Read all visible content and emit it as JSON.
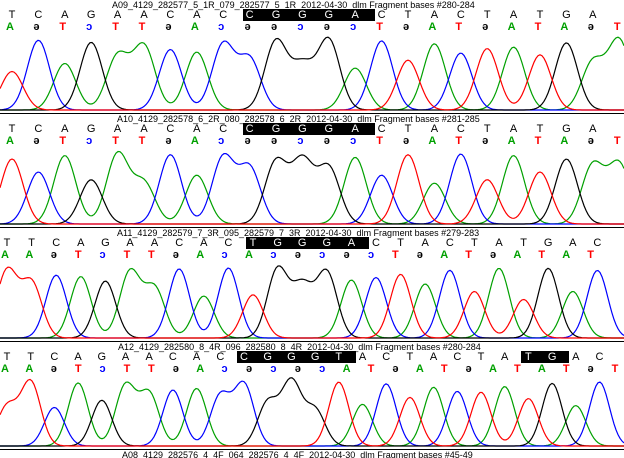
{
  "colors": {
    "A": "#00a000",
    "C": "#0000ff",
    "G": "#000000",
    "T": "#ff0000"
  },
  "panels": [
    {
      "title": "A09_4129_282577_5_1R_079_282577_5_1R_2012-04-30_dlm Fragment bases #280-284",
      "called": [
        "T",
        "C",
        "A",
        "G",
        "A",
        "A",
        "C",
        "A",
        "C",
        "C",
        "G",
        "G",
        "G",
        "A",
        "C",
        "T",
        "A",
        "C",
        "T",
        "A",
        "T",
        "G",
        "A"
      ],
      "called_hl": [
        9,
        13
      ],
      "quality": [
        "A",
        "G",
        "T",
        "C",
        "T",
        "T",
        "G",
        "A",
        "C",
        "G",
        "G",
        "C",
        "G",
        "C",
        "T",
        "G",
        "A",
        "T",
        "G",
        "A",
        "T",
        "A",
        "G",
        "T"
      ],
      "peaks": [
        "T",
        "C",
        "A",
        "G",
        "A",
        "A",
        "C",
        "A",
        "C",
        "C",
        "G",
        "G",
        "G",
        "A",
        "C",
        "T",
        "A",
        "C",
        "T",
        "A",
        "T",
        "G",
        "A",
        "A"
      ]
    },
    {
      "title": "A10_4129_282578_6_2R_080_282578_6_2R_2012-04-30_dlm Fragment bases #281-285",
      "called": [
        "T",
        "C",
        "A",
        "G",
        "A",
        "A",
        "C",
        "A",
        "C",
        "C",
        "G",
        "G",
        "G",
        "A",
        "C",
        "T",
        "A",
        "C",
        "T",
        "A",
        "T",
        "G",
        "A"
      ],
      "called_hl": [
        9,
        13
      ],
      "quality": [
        "A",
        "G",
        "T",
        "C",
        "T",
        "T",
        "G",
        "A",
        "C",
        "G",
        "G",
        "C",
        "G",
        "C",
        "T",
        "G",
        "A",
        "T",
        "G",
        "A",
        "T",
        "A",
        "G",
        "T"
      ],
      "peaks": [
        "T",
        "C",
        "A",
        "G",
        "A",
        "A",
        "C",
        "A",
        "C",
        "C",
        "G",
        "G",
        "G",
        "A",
        "C",
        "T",
        "A",
        "C",
        "T",
        "A",
        "T",
        "G",
        "A",
        "A"
      ]
    },
    {
      "title": "A11_4129_282579_7_3R_095_282579_7_3R_2012-04-30_dlm Fragment bases #279-283",
      "called": [
        "T",
        "T",
        "C",
        "A",
        "G",
        "A",
        "A",
        "C",
        "A",
        "C",
        "T",
        "G",
        "G",
        "G",
        "A",
        "C",
        "T",
        "A",
        "C",
        "T",
        "A",
        "T",
        "G",
        "A",
        "C"
      ],
      "called_hl": [
        10,
        14
      ],
      "quality": [
        "A",
        "A",
        "G",
        "T",
        "C",
        "T",
        "T",
        "G",
        "A",
        "C",
        "A",
        "C",
        "G",
        "C",
        "G",
        "C",
        "T",
        "G",
        "A",
        "T",
        "G",
        "A",
        "T",
        "A",
        "T"
      ],
      "peaks": [
        "T",
        "T",
        "C",
        "A",
        "G",
        "A",
        "A",
        "C",
        "A",
        "C",
        "T",
        "G",
        "G",
        "G",
        "A",
        "C",
        "T",
        "A",
        "C",
        "T",
        "A",
        "T",
        "G",
        "A",
        "C"
      ]
    },
    {
      "title": "A12_4129_282580_8_4R_096_282580_8_4R_2012-04-30_dlm Fragment bases #280-284",
      "called": [
        "T",
        "T",
        "C",
        "A",
        "G",
        "A",
        "A",
        "C",
        "A",
        "C",
        "C",
        "G",
        "G",
        "G",
        "T",
        "A",
        "C",
        "T",
        "A",
        "C",
        "T",
        "A",
        "T",
        "G",
        "A",
        "C"
      ],
      "called_hl": [
        10,
        14
      ],
      "called_hl2": [
        22,
        23
      ],
      "quality": [
        "A",
        "A",
        "G",
        "T",
        "C",
        "T",
        "T",
        "G",
        "A",
        "C",
        "G",
        "C",
        "G",
        "C",
        "A",
        "T",
        "G",
        "A",
        "T",
        "G",
        "A",
        "T",
        "A",
        "T",
        "G",
        "T"
      ],
      "peaks": [
        "T",
        "T",
        "C",
        "A",
        "G",
        "A",
        "A",
        "C",
        "A",
        "C",
        "C",
        "G",
        "G",
        "G",
        "T",
        "A",
        "C",
        "T",
        "A",
        "C",
        "T",
        "A",
        "T",
        "G",
        "A",
        "C"
      ]
    },
    {
      "title": "A08_4129_282576_4_4F_064_282576_4_4F_2012-04-30_dlm Fragment bases #45-49",
      "called": [],
      "quality": [],
      "peaks": []
    }
  ]
}
